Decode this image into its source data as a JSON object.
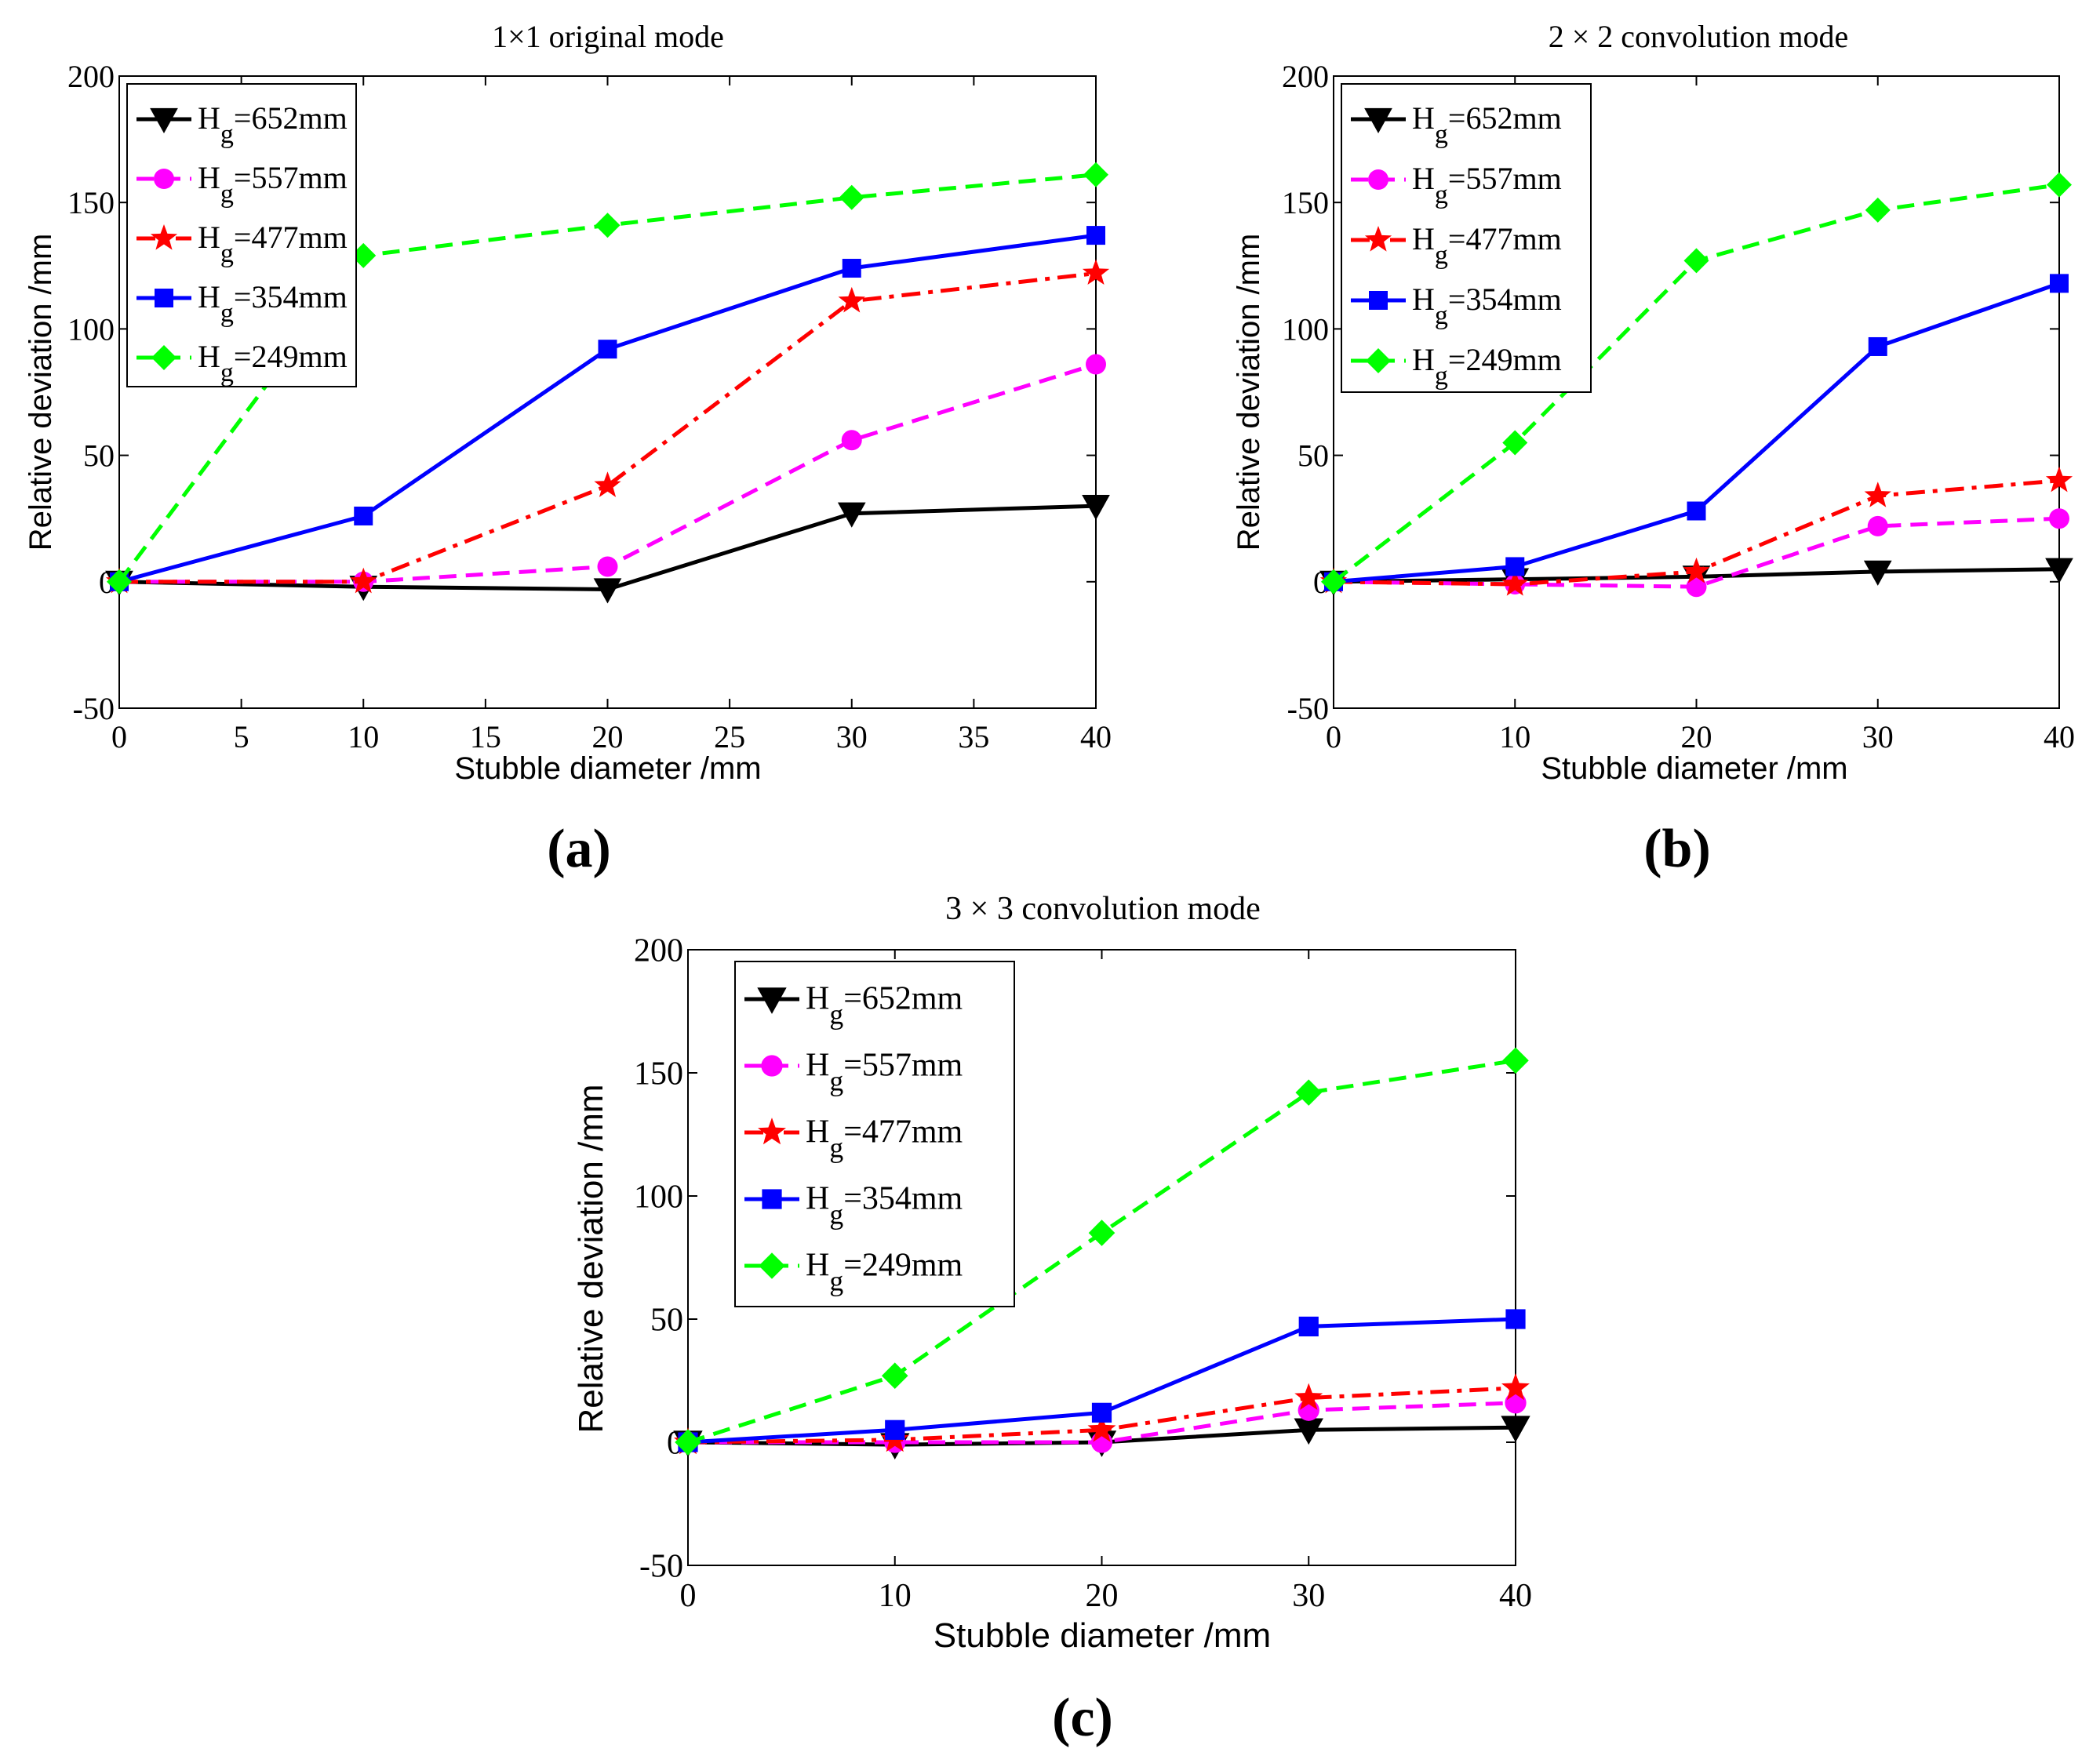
{
  "figure": {
    "panels": [
      {
        "id": "a",
        "caption": "(a)"
      },
      {
        "id": "b",
        "caption": "(b)"
      },
      {
        "id": "c",
        "caption": "(c)"
      }
    ]
  },
  "chart_data": [
    {
      "type": "line",
      "panel": "a",
      "title": "1×1 original mode",
      "xlabel": "Stubble diameter /mm",
      "ylabel": "Relative deviation /mm",
      "xlim": [
        0,
        40
      ],
      "ylim": [
        -50,
        200
      ],
      "xticks": [
        0,
        5,
        10,
        15,
        20,
        25,
        30,
        35,
        40
      ],
      "xtick_labels": [
        "0",
        "5",
        "10",
        "15",
        "20",
        "25",
        "30",
        "35",
        "40"
      ],
      "yticks": [
        -50,
        0,
        50,
        100,
        150,
        200
      ],
      "ytick_labels": [
        "-50",
        "0",
        "50",
        "100",
        "150",
        "200"
      ],
      "grid": false,
      "legend_position": "top-left",
      "x": [
        0,
        10,
        20,
        30,
        40
      ],
      "series": [
        {
          "name_main": "H",
          "name_sub": "g",
          "name_rest": "=652mm",
          "color": "#000000",
          "dash": "solid",
          "marker": "triangle-down",
          "values": [
            0,
            -2,
            -3,
            27,
            30
          ]
        },
        {
          "name_main": "H",
          "name_sub": "g",
          "name_rest": "=557mm",
          "color": "#ff00ff",
          "dash": "dashed",
          "marker": "circle",
          "values": [
            0,
            0,
            6,
            56,
            86
          ]
        },
        {
          "name_main": "H",
          "name_sub": "g",
          "name_rest": "=477mm",
          "color": "#ff0000",
          "dash": "dashdot",
          "marker": "star",
          "values": [
            0,
            0,
            38,
            111,
            122
          ]
        },
        {
          "name_main": "H",
          "name_sub": "g",
          "name_rest": "=354mm",
          "color": "#0000ff",
          "dash": "solid",
          "marker": "square",
          "values": [
            0,
            26,
            92,
            124,
            137
          ]
        },
        {
          "name_main": "H",
          "name_sub": "g",
          "name_rest": "=249mm",
          "color": "#00ff00",
          "dash": "dashed",
          "marker": "diamond",
          "values": [
            0,
            129,
            141,
            152,
            161
          ]
        }
      ]
    },
    {
      "type": "line",
      "panel": "b",
      "title": "2 × 2 convolution mode",
      "xlabel": "Stubble diameter /mm",
      "ylabel": "Relative deviation /mm",
      "xlim": [
        0,
        40
      ],
      "ylim": [
        -50,
        200
      ],
      "xticks": [
        0,
        10,
        20,
        30,
        40
      ],
      "xtick_labels": [
        "0",
        "10",
        "20",
        "30",
        "40"
      ],
      "yticks": [
        -50,
        0,
        50,
        100,
        150,
        200
      ],
      "ytick_labels": [
        "-50",
        "0",
        "50",
        "100",
        "150",
        "200"
      ],
      "grid": false,
      "legend_position": "top-left",
      "x": [
        0,
        10,
        20,
        30,
        40
      ],
      "series": [
        {
          "name_main": "H",
          "name_sub": "g",
          "name_rest": "=652mm",
          "color": "#000000",
          "dash": "solid",
          "marker": "triangle-down",
          "values": [
            0,
            1,
            2,
            4,
            5
          ]
        },
        {
          "name_main": "H",
          "name_sub": "g",
          "name_rest": "=557mm",
          "color": "#ff00ff",
          "dash": "dashed",
          "marker": "circle",
          "values": [
            0,
            -1,
            -2,
            22,
            25
          ]
        },
        {
          "name_main": "H",
          "name_sub": "g",
          "name_rest": "=477mm",
          "color": "#ff0000",
          "dash": "dashdot",
          "marker": "star",
          "values": [
            0,
            -1,
            4,
            34,
            40
          ]
        },
        {
          "name_main": "H",
          "name_sub": "g",
          "name_rest": "=354mm",
          "color": "#0000ff",
          "dash": "solid",
          "marker": "square",
          "values": [
            0,
            6,
            28,
            93,
            118
          ]
        },
        {
          "name_main": "H",
          "name_sub": "g",
          "name_rest": "=249mm",
          "color": "#00ff00",
          "dash": "dashed",
          "marker": "diamond",
          "values": [
            0,
            55,
            127,
            147,
            157
          ]
        }
      ]
    },
    {
      "type": "line",
      "panel": "c",
      "title": "3 × 3 convolution mode",
      "xlabel": "Stubble diameter /mm",
      "ylabel": "Relative deviation /mm",
      "xlim": [
        0,
        40
      ],
      "ylim": [
        -50,
        200
      ],
      "xticks": [
        0,
        10,
        20,
        30,
        40
      ],
      "xtick_labels": [
        "0",
        "10",
        "20",
        "30",
        "40"
      ],
      "yticks": [
        -50,
        0,
        50,
        100,
        150,
        200
      ],
      "ytick_labels": [
        "-50",
        "0",
        "50",
        "100",
        "150",
        "200"
      ],
      "grid": false,
      "legend_position": "top-left",
      "x": [
        0,
        10,
        20,
        30,
        40
      ],
      "series": [
        {
          "name_main": "H",
          "name_sub": "g",
          "name_rest": "=652mm",
          "color": "#000000",
          "dash": "solid",
          "marker": "triangle-down",
          "values": [
            0,
            -1,
            0,
            5,
            6
          ]
        },
        {
          "name_main": "H",
          "name_sub": "g",
          "name_rest": "=557mm",
          "color": "#ff00ff",
          "dash": "dashed",
          "marker": "circle",
          "values": [
            0,
            0,
            0,
            13,
            16
          ]
        },
        {
          "name_main": "H",
          "name_sub": "g",
          "name_rest": "=477mm",
          "color": "#ff0000",
          "dash": "dashdot",
          "marker": "star",
          "values": [
            0,
            1,
            5,
            18,
            22
          ]
        },
        {
          "name_main": "H",
          "name_sub": "g",
          "name_rest": "=354mm",
          "color": "#0000ff",
          "dash": "solid",
          "marker": "square",
          "values": [
            0,
            5,
            12,
            47,
            50
          ]
        },
        {
          "name_main": "H",
          "name_sub": "g",
          "name_rest": "=249mm",
          "color": "#00ff00",
          "dash": "dashed",
          "marker": "diamond",
          "values": [
            0,
            27,
            85,
            142,
            155
          ]
        }
      ]
    }
  ]
}
